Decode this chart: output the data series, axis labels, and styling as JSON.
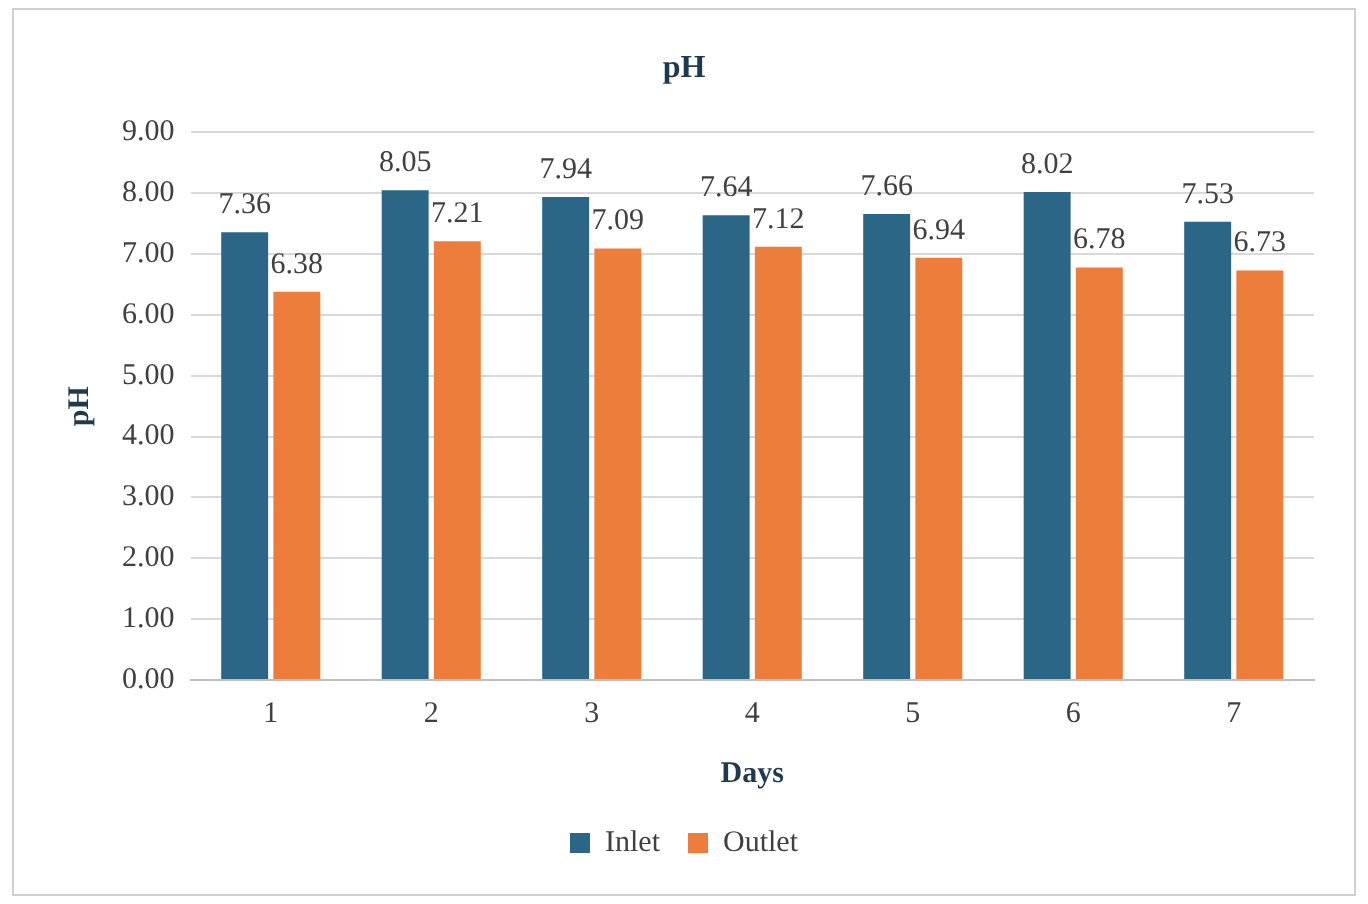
{
  "chart_data": {
    "type": "bar",
    "title": "pH",
    "xlabel": "Days",
    "ylabel": "pH",
    "categories": [
      "1",
      "2",
      "3",
      "4",
      "5",
      "6",
      "7"
    ],
    "series": [
      {
        "name": "Inlet",
        "color": "#2b6687",
        "values": [
          7.36,
          8.05,
          7.94,
          7.64,
          7.66,
          8.02,
          7.53
        ]
      },
      {
        "name": "Outlet",
        "color": "#ed7d3b",
        "values": [
          6.38,
          7.21,
          7.09,
          7.12,
          6.94,
          6.78,
          6.73
        ]
      }
    ],
    "ylim": [
      0,
      9
    ],
    "yticks": [
      {
        "value": 0,
        "label": "0.00"
      },
      {
        "value": 1,
        "label": "1.00"
      },
      {
        "value": 2,
        "label": "2.00"
      },
      {
        "value": 3,
        "label": "3.00"
      },
      {
        "value": 4,
        "label": "4.00"
      },
      {
        "value": 5,
        "label": "5.00"
      },
      {
        "value": 6,
        "label": "6.00"
      },
      {
        "value": 7,
        "label": "7.00"
      },
      {
        "value": 8,
        "label": "8.00"
      },
      {
        "value": 9,
        "label": "9.00"
      }
    ],
    "grid": "y",
    "legend": "bottom",
    "data_labels": true
  }
}
